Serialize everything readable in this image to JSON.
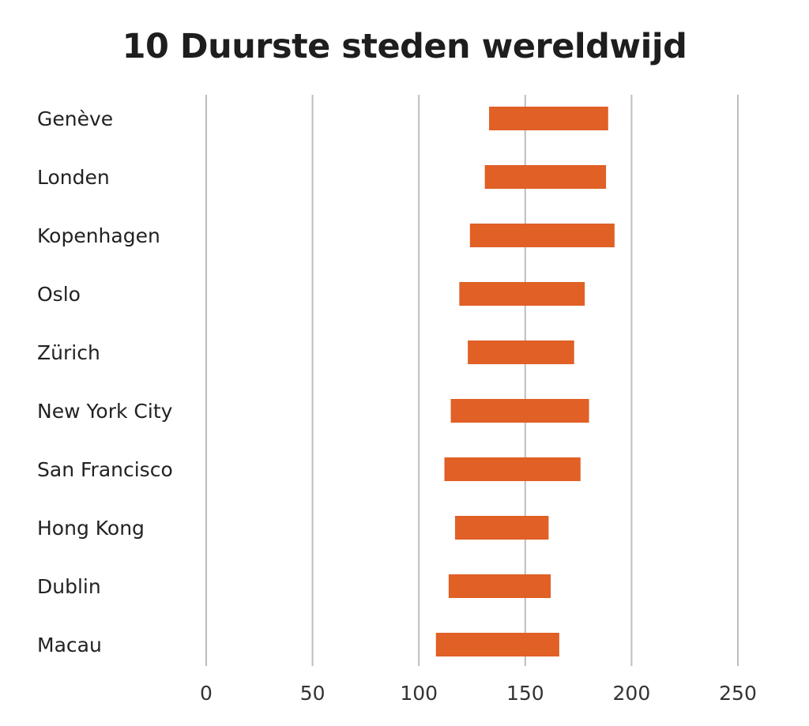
{
  "chart_data": {
    "type": "bar",
    "subtype": "floating-range-horizontal",
    "title": "10 Duurste steden wereldwijd",
    "xlabel": "",
    "ylabel": "",
    "xlim": [
      0,
      250
    ],
    "xticks": [
      0,
      50,
      100,
      150,
      200,
      250
    ],
    "grid": "vertical",
    "legend": "none",
    "color": "#E06026",
    "categories": [
      "Genève",
      "Londen",
      "Kopenhagen",
      "Oslo",
      "Zürich",
      "New York City",
      "San Francisco",
      "Hong Kong",
      "Dublin",
      "Macau"
    ],
    "low": [
      133,
      131,
      124,
      119,
      123,
      115,
      112,
      117,
      114,
      108
    ],
    "high": [
      189,
      188,
      192,
      178,
      173,
      180,
      176,
      161,
      162,
      166
    ]
  }
}
